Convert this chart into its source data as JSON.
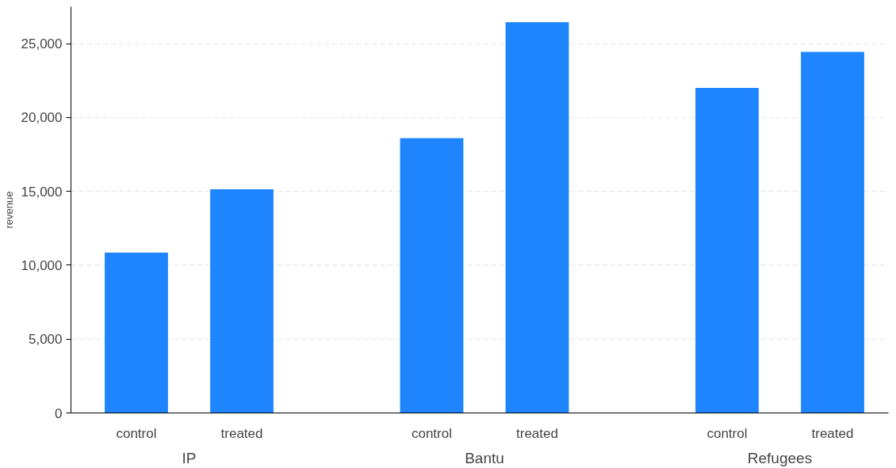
{
  "chart_data": {
    "type": "bar",
    "ylabel": "revenue",
    "categories": [
      "control",
      "treated",
      "control",
      "treated",
      "control",
      "treated"
    ],
    "values": [
      10850,
      15150,
      18600,
      26450,
      22000,
      24450
    ],
    "color": "#1e85ff",
    "ylim": [
      0,
      27500
    ],
    "yticks": [
      0,
      {
        "value": 5000,
        "label": "5,000"
      },
      {
        "value": 10000,
        "label": "10,000"
      },
      {
        "value": 15000,
        "label": "15,000"
      },
      {
        "value": 20000,
        "label": "20,000"
      },
      {
        "value": 25000,
        "label": "25,000"
      }
    ],
    "grid": "y",
    "annotations": [
      "IP",
      "Bantu",
      "Refugees"
    ]
  }
}
